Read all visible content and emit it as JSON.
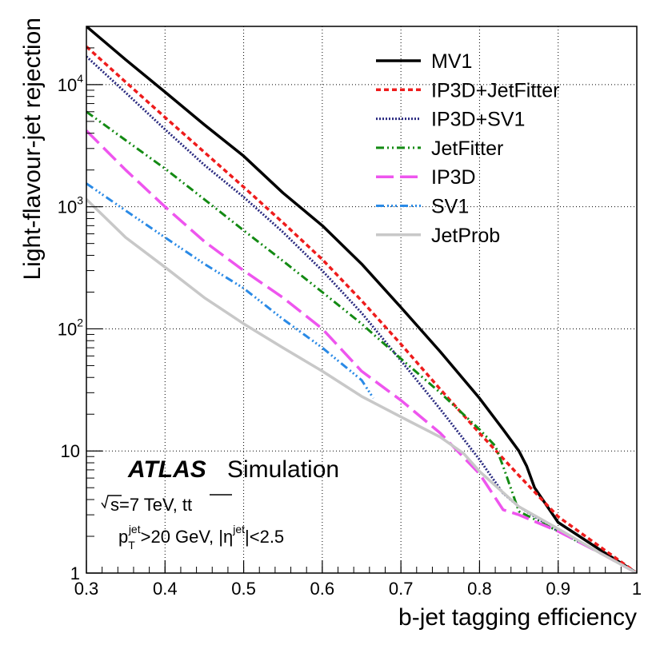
{
  "chart_data": {
    "type": "line",
    "title": "",
    "xlabel": "b-jet tagging efficiency",
    "ylabel": "Light-flavour-jet rejection",
    "xlim": [
      0.3,
      1.0
    ],
    "ylim": [
      1,
      30000
    ],
    "yscale": "log",
    "grid": true,
    "legend_position": "top-right",
    "x_ticks": [
      "0.3",
      "0.4",
      "0.5",
      "0.6",
      "0.7",
      "0.8",
      "0.9",
      "1"
    ],
    "y_ticks": [
      {
        "value": 1,
        "label": "1"
      },
      {
        "value": 10,
        "label": "10"
      },
      {
        "value": 100,
        "label": "10",
        "exp": "2"
      },
      {
        "value": 1000,
        "label": "10",
        "exp": "3"
      },
      {
        "value": 10000,
        "label": "10",
        "exp": "4"
      }
    ],
    "series": [
      {
        "name": "MV1",
        "color": "#000000",
        "dash": "solid",
        "width": 3.5,
        "x": [
          0.3,
          0.35,
          0.4,
          0.45,
          0.5,
          0.55,
          0.6,
          0.65,
          0.7,
          0.75,
          0.8,
          0.83,
          0.85,
          0.86,
          0.87,
          0.9,
          0.95,
          1.0
        ],
        "y": [
          30000,
          16000,
          8700,
          4700,
          2600,
          1300,
          700,
          340,
          150,
          65,
          27,
          15,
          10,
          7.5,
          5,
          2.6,
          1.6,
          1.0
        ]
      },
      {
        "name": "IP3D+JetFitter",
        "color": "#ee1c1c",
        "dash": "6,4",
        "width": 3.5,
        "x": [
          0.3,
          0.35,
          0.4,
          0.45,
          0.5,
          0.55,
          0.6,
          0.65,
          0.7,
          0.75,
          0.8,
          0.85,
          0.9,
          0.95,
          1.0
        ],
        "y": [
          20500,
          10500,
          5400,
          2800,
          1450,
          740,
          370,
          170,
          75,
          32,
          14,
          6.3,
          2.9,
          1.7,
          1.0
        ]
      },
      {
        "name": "IP3D+SV1",
        "color": "#2a2a80",
        "dash": "2,2",
        "width": 3,
        "x": [
          0.3,
          0.35,
          0.4,
          0.45,
          0.5,
          0.55,
          0.6,
          0.65,
          0.7,
          0.75,
          0.8,
          0.83,
          0.85,
          0.9,
          0.95,
          1.0
        ],
        "y": [
          17000,
          8600,
          4300,
          2200,
          1200,
          620,
          300,
          135,
          55,
          22,
          8.5,
          4.5,
          3.5,
          2.2,
          1.5,
          1.0
        ]
      },
      {
        "name": "JetFitter",
        "color": "#138a13",
        "dash": "10,4,2,4,2,4",
        "width": 3,
        "x": [
          0.3,
          0.35,
          0.4,
          0.45,
          0.5,
          0.55,
          0.6,
          0.65,
          0.7,
          0.75,
          0.8,
          0.82,
          0.83,
          0.85,
          0.9,
          0.95,
          1.0
        ],
        "y": [
          6000,
          3500,
          2050,
          1150,
          640,
          360,
          200,
          110,
          57,
          30,
          15,
          11,
          7.5,
          3.2,
          2.2,
          1.5,
          1.0
        ]
      },
      {
        "name": "IP3D",
        "color": "#ee55ee",
        "dash": "22,8",
        "width": 3.5,
        "x": [
          0.3,
          0.35,
          0.4,
          0.45,
          0.5,
          0.55,
          0.6,
          0.65,
          0.7,
          0.75,
          0.8,
          0.83,
          0.85,
          0.9,
          0.95,
          1.0
        ],
        "y": [
          4200,
          2000,
          1000,
          520,
          300,
          180,
          100,
          45,
          26,
          14,
          6.5,
          3.3,
          3.0,
          2.2,
          1.5,
          1.0
        ]
      },
      {
        "name": "SV1",
        "color": "#2a8ae6",
        "dash": "10,4,2,3,2,3,2,4",
        "width": 3,
        "x": [
          0.3,
          0.35,
          0.4,
          0.45,
          0.5,
          0.55,
          0.6,
          0.65,
          0.665
        ],
        "y": [
          1550,
          930,
          560,
          340,
          215,
          120,
          70,
          38,
          27
        ]
      },
      {
        "name": "JetProb",
        "color": "#c8c8c8",
        "dash": "solid",
        "width": 3.5,
        "x": [
          0.3,
          0.35,
          0.4,
          0.45,
          0.5,
          0.55,
          0.6,
          0.65,
          0.7,
          0.75,
          0.78,
          0.8,
          0.85,
          0.9,
          0.95,
          1.0
        ],
        "y": [
          1150,
          560,
          320,
          180,
          110,
          70,
          45,
          28,
          19,
          13,
          9.5,
          6.8,
          3.5,
          2.3,
          1.5,
          1.0
        ]
      }
    ],
    "annotations": {
      "experiment": "ATLAS",
      "label": "Simulation",
      "energy_root": "s",
      "energy_rest": "=7 TeV,  tt",
      "cut_p": "p",
      "cut_sub": "T",
      "cut_sup": "jet",
      "cut_mid": ">20 GeV, |η",
      "cut_sup2": "jet",
      "cut_end": "|<2.5"
    }
  }
}
